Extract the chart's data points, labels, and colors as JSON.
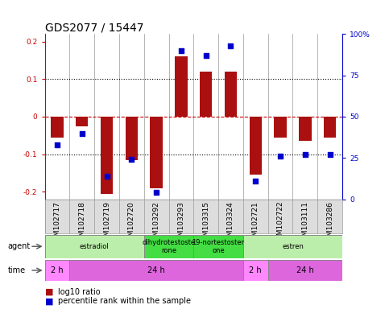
{
  "title": "GDS2077 / 15447",
  "samples": [
    "GSM102717",
    "GSM102718",
    "GSM102719",
    "GSM102720",
    "GSM103292",
    "GSM103293",
    "GSM103315",
    "GSM103324",
    "GSM102721",
    "GSM102722",
    "GSM103111",
    "GSM103286"
  ],
  "log10_ratio": [
    -0.055,
    -0.025,
    -0.205,
    -0.115,
    -0.19,
    0.16,
    0.12,
    0.12,
    -0.155,
    -0.055,
    -0.065,
    -0.055
  ],
  "percentile": [
    33,
    40,
    14,
    24,
    4,
    90,
    87,
    93,
    11,
    26,
    27,
    27
  ],
  "ylim": [
    -0.22,
    0.22
  ],
  "yticks_left": [
    -0.2,
    -0.1,
    0.0,
    0.1,
    0.2
  ],
  "yticks_right": [
    0,
    25,
    50,
    75,
    100
  ],
  "bar_color": "#AA1010",
  "dot_color": "#0000CC",
  "bg_color": "#ffffff",
  "agent_groups": [
    {
      "label": "estradiol",
      "start": 0,
      "end": 4,
      "color": "#BBEEAA"
    },
    {
      "label": "dihydrotestoste\nrone",
      "start": 4,
      "end": 6,
      "color": "#44DD44"
    },
    {
      "label": "19-nortestoster\none",
      "start": 6,
      "end": 8,
      "color": "#44DD44"
    },
    {
      "label": "estren",
      "start": 8,
      "end": 12,
      "color": "#BBEEAA"
    }
  ],
  "time_groups": [
    {
      "label": "2 h",
      "start": 0,
      "end": 1,
      "color": "#FF88FF"
    },
    {
      "label": "24 h",
      "start": 1,
      "end": 8,
      "color": "#DD66DD"
    },
    {
      "label": "2 h",
      "start": 8,
      "end": 9,
      "color": "#FF88FF"
    },
    {
      "label": "24 h",
      "start": 9,
      "end": 12,
      "color": "#DD66DD"
    }
  ],
  "legend_red_label": "log10 ratio",
  "legend_blue_label": "percentile rank within the sample",
  "title_fontsize": 10,
  "tick_fontsize": 6.5,
  "anno_fontsize": 7.5
}
